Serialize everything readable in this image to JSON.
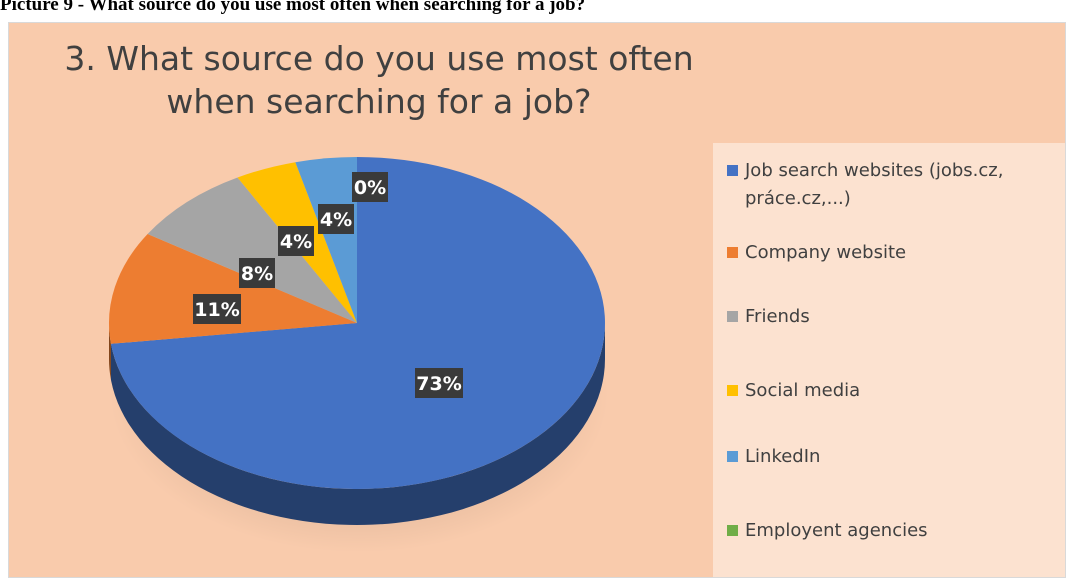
{
  "caption": "Picture 9 - What source do you use most often when searching for a job?",
  "chart_data": {
    "type": "pie",
    "title_lines": [
      "3. What source do you use most often",
      "when searching for a job?"
    ],
    "categories": [
      "Job search websites (jobs.cz, práce.cz,...)",
      "Company website",
      "Friends",
      "Social media",
      "LinkedIn",
      "Employent agencies"
    ],
    "values": [
      73,
      11,
      8,
      4,
      4,
      0
    ],
    "data_labels": [
      "73%",
      "11%",
      "8%",
      "4%",
      "4%",
      "0%"
    ],
    "colors": [
      "#4472c4",
      "#ed7d31",
      "#a5a5a5",
      "#ffc000",
      "#5b9bd5",
      "#70ad47"
    ],
    "legend_position": "right",
    "style": "3d"
  }
}
